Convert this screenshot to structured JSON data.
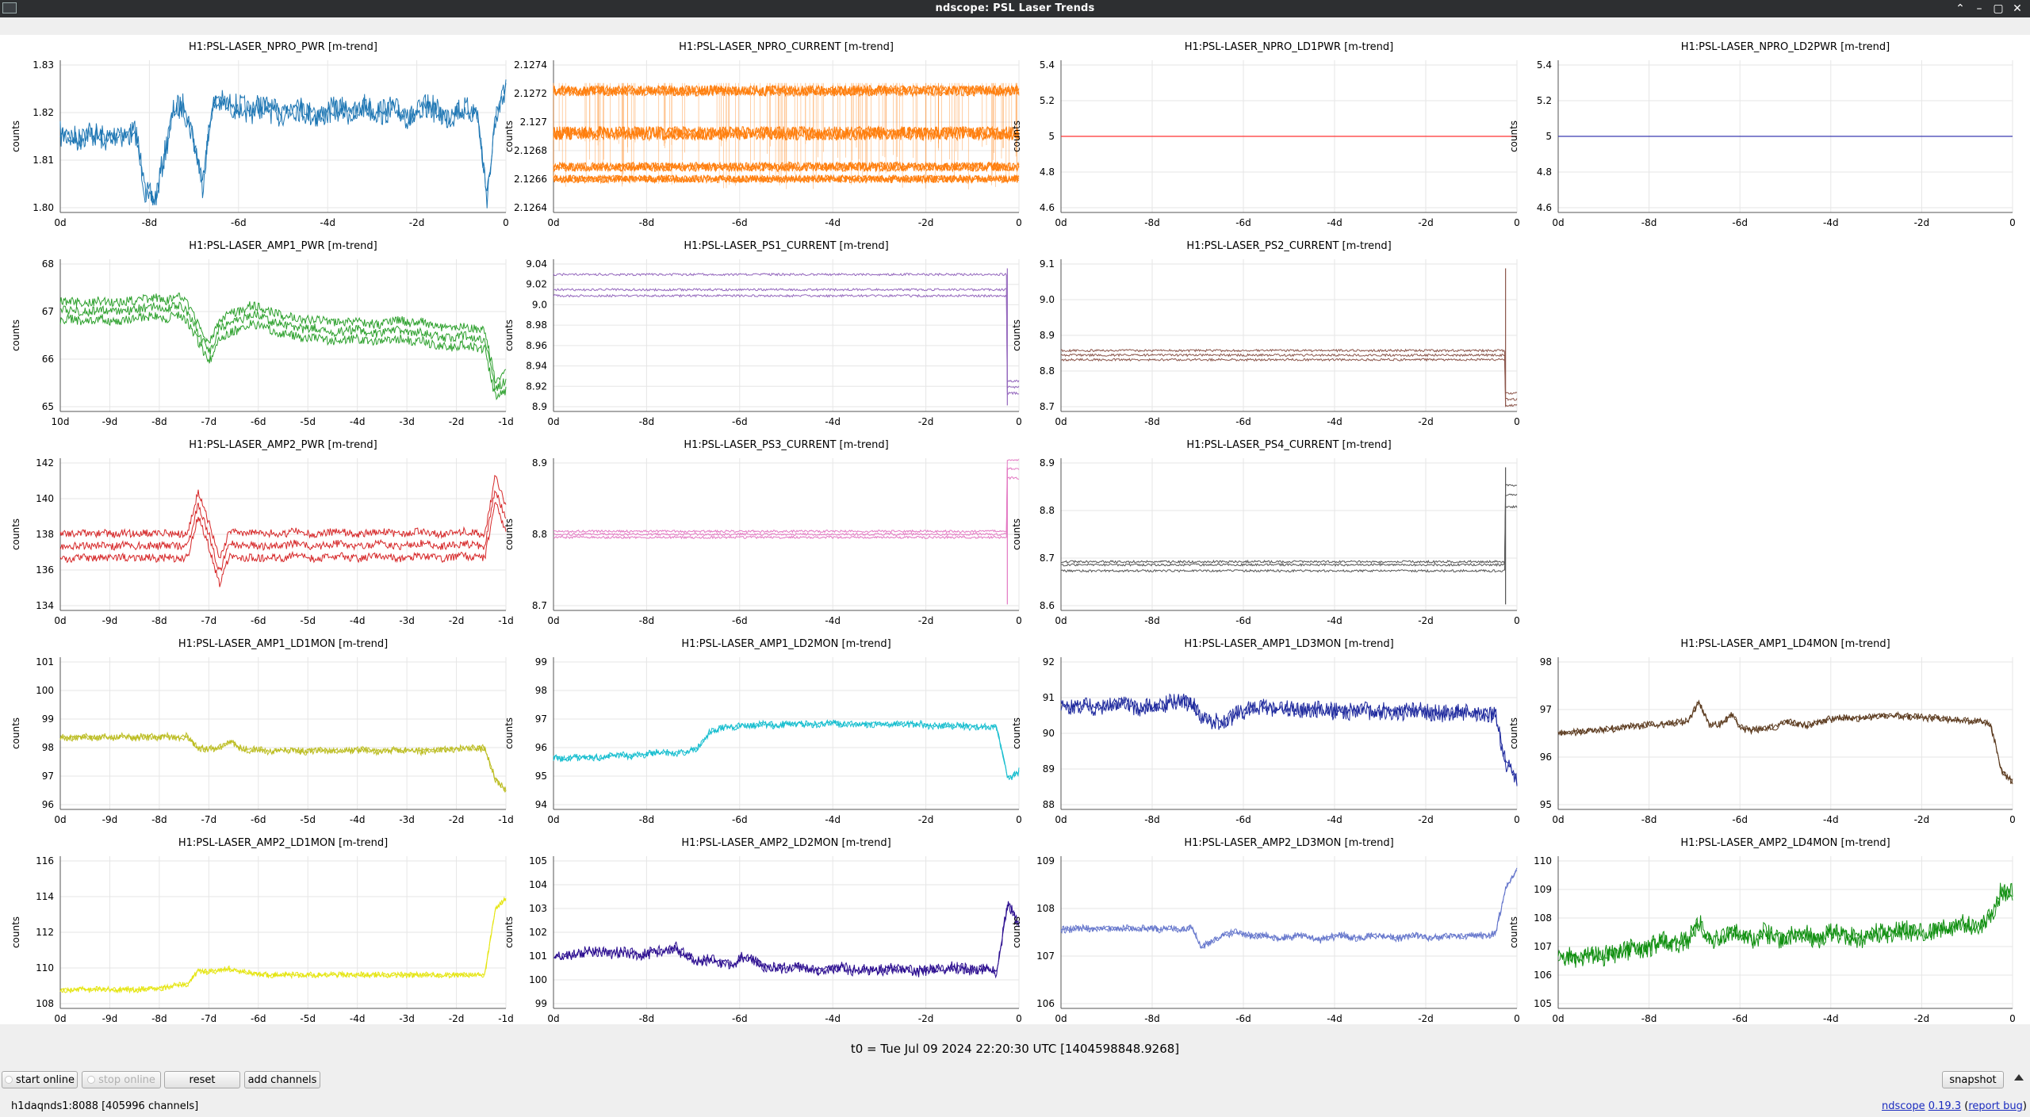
{
  "window": {
    "title": "ndscope: PSL Laser Trends",
    "controls": [
      "⌃",
      "–",
      "▢",
      "✕"
    ]
  },
  "y_unit": "counts",
  "plots": [
    {
      "title": "H1:PSL-LASER_NPRO_PWR [m-trend]",
      "color": "#1f77b4",
      "yticks": [
        "1.83",
        "1.82",
        "1.81",
        "1.80"
      ],
      "xticks": [
        "0d",
        "-8d",
        "-6d",
        "-4d",
        "-2d",
        "0"
      ],
      "style": "noisy",
      "series": {
        "base": [
          0.49,
          0.5,
          0.52,
          0.47,
          0.5,
          0.52,
          0.48,
          0.5,
          0.47,
          0.88,
          0.92,
          0.62,
          0.32,
          0.3,
          0.5,
          0.82,
          0.3,
          0.28,
          0.3,
          0.31,
          0.34,
          0.3,
          0.32,
          0.36,
          0.33,
          0.31,
          0.34,
          0.37,
          0.35,
          0.32,
          0.33,
          0.36,
          0.3,
          0.33,
          0.34,
          0.32,
          0.35,
          0.38,
          0.33,
          0.3,
          0.35,
          0.38,
          0.32,
          0.33,
          0.35,
          0.9,
          0.35,
          0.2
        ],
        "amp": 0.09
      }
    },
    {
      "title": "H1:PSL-LASER_NPRO_CURRENT [m-trend]",
      "color": "#ff7f0e",
      "yticks": [
        "2.1274",
        "2.1272",
        "2.127",
        "2.1268",
        "2.1266",
        "2.1264"
      ],
      "xticks": [
        "0d",
        "-8d",
        "-6d",
        "-4d",
        "-2d",
        "0"
      ],
      "style": "bands",
      "bands": [
        0.2,
        0.48,
        0.7,
        0.78
      ],
      "bandw": [
        0.07,
        0.09,
        0.06,
        0.05
      ]
    },
    {
      "title": "H1:PSL-LASER_NPRO_LD1PWR [m-trend]",
      "color": "#ff3333",
      "yticks": [
        "5.4",
        "5.2",
        "5",
        "4.8",
        "4.6"
      ],
      "xticks": [
        "0d",
        "-8d",
        "-6d",
        "-4d",
        "-2d",
        "0"
      ],
      "style": "flat",
      "level": 0.5
    },
    {
      "title": "H1:PSL-LASER_NPRO_LD2PWR [m-trend]",
      "color": "#3a3ab0",
      "yticks": [
        "5.4",
        "5.2",
        "5",
        "4.8",
        "4.6"
      ],
      "xticks": [
        "0d",
        "-8d",
        "-6d",
        "-4d",
        "-2d",
        "0"
      ],
      "style": "flat",
      "level": 0.5
    },
    {
      "title": "H1:PSL-LASER_AMP1_PWR [m-trend]",
      "color": "#2ca02c",
      "yticks": [
        "68",
        "67",
        "66",
        "65"
      ],
      "xticks": [
        "10d",
        "-9d",
        "-8d",
        "-7d",
        "-6d",
        "-5d",
        "-4d",
        "-3d",
        "-2d",
        "-1d"
      ],
      "style": "triple",
      "series": {
        "base": [
          0.34,
          0.33,
          0.35,
          0.34,
          0.33,
          0.35,
          0.34,
          0.33,
          0.32,
          0.31,
          0.33,
          0.3,
          0.35,
          0.48,
          0.62,
          0.46,
          0.42,
          0.4,
          0.36,
          0.38,
          0.41,
          0.43,
          0.44,
          0.46,
          0.45,
          0.47,
          0.48,
          0.47,
          0.46,
          0.48,
          0.49,
          0.47,
          0.46,
          0.48,
          0.47,
          0.5,
          0.51,
          0.52,
          0.5,
          0.52,
          0.53,
          0.85,
          0.8
        ],
        "amp": 0.03,
        "spread": 0.06
      }
    },
    {
      "title": "H1:PSL-LASER_PS1_CURRENT [m-trend]",
      "color": "#9467bd",
      "yticks": [
        "9.04",
        "9.02",
        "9.0",
        "8.98",
        "8.96",
        "8.94",
        "8.92",
        "8.9"
      ],
      "xticks": [
        "0d",
        "-8d",
        "-6d",
        "-4d",
        "-2d",
        "0"
      ],
      "style": "stepdown",
      "levels": [
        0.1,
        0.2,
        0.24
      ],
      "drop": 0.8
    },
    {
      "title": "H1:PSL-LASER_PS2_CURRENT [m-trend]",
      "color": "#8c564b",
      "yticks": [
        "9.1",
        "9.0",
        "8.9",
        "8.8",
        "8.7"
      ],
      "xticks": [
        "0d",
        "-8d",
        "-6d",
        "-4d",
        "-2d",
        "0"
      ],
      "style": "stepdown",
      "levels": [
        0.6,
        0.63,
        0.66
      ],
      "drop": 0.88
    },
    null,
    {
      "title": "H1:PSL-LASER_AMP2_PWR [m-trend]",
      "color": "#d62728",
      "yticks": [
        "142",
        "140",
        "138",
        "136",
        "134"
      ],
      "xticks": [
        "0d",
        "-9d",
        "-8d",
        "-7d",
        "-6d",
        "-5d",
        "-4d",
        "-3d",
        "-2d",
        "-1d"
      ],
      "style": "triple",
      "series": {
        "base": [
          0.58,
          0.58,
          0.57,
          0.58,
          0.57,
          0.58,
          0.57,
          0.58,
          0.57,
          0.58,
          0.57,
          0.58,
          0.57,
          0.3,
          0.5,
          0.75,
          0.55,
          0.58,
          0.57,
          0.58,
          0.57,
          0.58,
          0.56,
          0.57,
          0.58,
          0.57,
          0.56,
          0.57,
          0.58,
          0.57,
          0.56,
          0.57,
          0.58,
          0.57,
          0.56,
          0.57,
          0.58,
          0.57,
          0.56,
          0.57,
          0.58,
          0.2,
          0.4
        ],
        "amp": 0.025,
        "spread": 0.08
      }
    },
    {
      "title": "H1:PSL-LASER_PS3_CURRENT [m-trend]",
      "color": "#e377c2",
      "yticks": [
        "8.9",
        "8.8",
        "8.7"
      ],
      "xticks": [
        "0d",
        "-8d",
        "-6d",
        "-4d",
        "-2d",
        "0"
      ],
      "style": "stepup",
      "levels": [
        0.48,
        0.5,
        0.52
      ],
      "jump": 0.12
    },
    {
      "title": "H1:PSL-LASER_PS4_CURRENT [m-trend]",
      "color": "#555555",
      "yticks": [
        "8.9",
        "8.8",
        "8.7",
        "8.6"
      ],
      "xticks": [
        "0d",
        "-8d",
        "-6d",
        "-4d",
        "-2d",
        "0"
      ],
      "style": "stepup",
      "levels": [
        0.68,
        0.7,
        0.74
      ],
      "jump": 0.15
    },
    null,
    {
      "title": "H1:PSL-LASER_AMP1_LD1MON [m-trend]",
      "color": "#bcbd22",
      "yticks": [
        "101",
        "100",
        "99",
        "98",
        "97",
        "96"
      ],
      "xticks": [
        "0d",
        "-9d",
        "-8d",
        "-7d",
        "-6d",
        "-5d",
        "-4d",
        "-3d",
        "-2d",
        "-1d"
      ],
      "style": "noisy",
      "series": {
        "base": [
          0.53,
          0.53,
          0.52,
          0.53,
          0.52,
          0.53,
          0.52,
          0.53,
          0.52,
          0.53,
          0.52,
          0.53,
          0.52,
          0.6,
          0.6,
          0.6,
          0.55,
          0.6,
          0.61,
          0.61,
          0.62,
          0.61,
          0.61,
          0.62,
          0.61,
          0.61,
          0.62,
          0.61,
          0.61,
          0.61,
          0.62,
          0.61,
          0.61,
          0.61,
          0.62,
          0.61,
          0.61,
          0.61,
          0.6,
          0.6,
          0.6,
          0.8,
          0.88
        ],
        "amp": 0.025
      }
    },
    {
      "title": "H1:PSL-LASER_AMP1_LD2MON [m-trend]",
      "color": "#17becf",
      "yticks": [
        "99",
        "98",
        "97",
        "96",
        "95",
        "94"
      ],
      "xticks": [
        "0d",
        "-8d",
        "-6d",
        "-4d",
        "-2d",
        "0"
      ],
      "style": "noisy",
      "series": {
        "base": [
          0.66,
          0.67,
          0.66,
          0.65,
          0.66,
          0.65,
          0.64,
          0.65,
          0.64,
          0.63,
          0.62,
          0.63,
          0.62,
          0.6,
          0.5,
          0.47,
          0.46,
          0.45,
          0.45,
          0.44,
          0.45,
          0.44,
          0.44,
          0.44,
          0.44,
          0.43,
          0.44,
          0.44,
          0.44,
          0.44,
          0.44,
          0.44,
          0.44,
          0.44,
          0.45,
          0.45,
          0.45,
          0.45,
          0.46,
          0.46,
          0.46,
          0.8,
          0.75
        ],
        "amp": 0.025
      }
    },
    {
      "title": "H1:PSL-LASER_AMP1_LD3MON [m-trend]",
      "color": "#1f2a9e",
      "yticks": [
        "92",
        "91",
        "90",
        "89",
        "88"
      ],
      "xticks": [
        "0d",
        "-8d",
        "-6d",
        "-4d",
        "-2d",
        "0"
      ],
      "style": "noisy",
      "series": {
        "base": [
          0.3,
          0.32,
          0.31,
          0.33,
          0.32,
          0.3,
          0.31,
          0.34,
          0.32,
          0.33,
          0.3,
          0.29,
          0.3,
          0.4,
          0.42,
          0.44,
          0.38,
          0.35,
          0.32,
          0.33,
          0.34,
          0.33,
          0.35,
          0.34,
          0.35,
          0.36,
          0.35,
          0.36,
          0.35,
          0.36,
          0.35,
          0.36,
          0.36,
          0.35,
          0.36,
          0.37,
          0.36,
          0.37,
          0.36,
          0.37,
          0.38,
          0.7,
          0.82
        ],
        "amp": 0.06
      }
    },
    {
      "title": "H1:PSL-LASER_AMP1_LD4MON [m-trend]",
      "color": "#5b3a1e",
      "yticks": [
        "98",
        "97",
        "96",
        "95"
      ],
      "xticks": [
        "0d",
        "-8d",
        "-6d",
        "-4d",
        "-2d",
        "0"
      ],
      "style": "noisy",
      "series": {
        "base": [
          0.5,
          0.5,
          0.49,
          0.48,
          0.48,
          0.47,
          0.46,
          0.45,
          0.45,
          0.44,
          0.44,
          0.43,
          0.42,
          0.3,
          0.45,
          0.44,
          0.38,
          0.47,
          0.48,
          0.47,
          0.46,
          0.42,
          0.44,
          0.45,
          0.43,
          0.41,
          0.4,
          0.4,
          0.4,
          0.39,
          0.38,
          0.38,
          0.39,
          0.39,
          0.4,
          0.4,
          0.41,
          0.41,
          0.42,
          0.42,
          0.45,
          0.75,
          0.82
        ],
        "amp": 0.025
      }
    },
    {
      "title": "H1:PSL-LASER_AMP2_LD1MON [m-trend]",
      "color": "#e5e510",
      "yticks": [
        "116",
        "114",
        "112",
        "110",
        "108"
      ],
      "xticks": [
        "0d",
        "-9d",
        "-8d",
        "-7d",
        "-6d",
        "-5d",
        "-4d",
        "-3d",
        "-2d",
        "-1d"
      ],
      "style": "noisy",
      "series": {
        "base": [
          0.88,
          0.88,
          0.87,
          0.88,
          0.87,
          0.88,
          0.87,
          0.88,
          0.87,
          0.87,
          0.86,
          0.85,
          0.84,
          0.75,
          0.76,
          0.75,
          0.74,
          0.76,
          0.77,
          0.78,
          0.78,
          0.78,
          0.78,
          0.78,
          0.78,
          0.78,
          0.78,
          0.78,
          0.78,
          0.78,
          0.78,
          0.78,
          0.78,
          0.78,
          0.78,
          0.78,
          0.78,
          0.78,
          0.78,
          0.78,
          0.78,
          0.35,
          0.28
        ],
        "amp": 0.02
      }
    },
    {
      "title": "H1:PSL-LASER_AMP2_LD2MON [m-trend]",
      "color": "#2a0c8f",
      "yticks": [
        "105",
        "104",
        "103",
        "102",
        "101",
        "100",
        "99"
      ],
      "xticks": [
        "0d",
        "-8d",
        "-6d",
        "-4d",
        "-2d",
        "0"
      ],
      "style": "noisy",
      "series": {
        "base": [
          0.65,
          0.66,
          0.64,
          0.63,
          0.62,
          0.64,
          0.63,
          0.64,
          0.65,
          0.63,
          0.62,
          0.6,
          0.66,
          0.7,
          0.68,
          0.7,
          0.72,
          0.66,
          0.68,
          0.72,
          0.74,
          0.73,
          0.72,
          0.74,
          0.76,
          0.74,
          0.73,
          0.75,
          0.74,
          0.76,
          0.74,
          0.73,
          0.75,
          0.76,
          0.74,
          0.75,
          0.73,
          0.74,
          0.75,
          0.74,
          0.76,
          0.3,
          0.45
        ],
        "amp": 0.04
      }
    },
    {
      "title": "H1:PSL-LASER_AMP2_LD3MON [m-trend]",
      "color": "#6677cc",
      "yticks": [
        "109",
        "108",
        "107",
        "106"
      ],
      "xticks": [
        "0d",
        "-8d",
        "-6d",
        "-4d",
        "-2d",
        "0"
      ],
      "style": "noisy",
      "series": {
        "base": [
          0.48,
          0.48,
          0.47,
          0.48,
          0.47,
          0.48,
          0.47,
          0.48,
          0.47,
          0.48,
          0.47,
          0.48,
          0.47,
          0.6,
          0.55,
          0.52,
          0.5,
          0.52,
          0.53,
          0.52,
          0.54,
          0.53,
          0.52,
          0.54,
          0.55,
          0.53,
          0.52,
          0.54,
          0.53,
          0.52,
          0.53,
          0.54,
          0.53,
          0.52,
          0.54,
          0.53,
          0.52,
          0.53,
          0.52,
          0.52,
          0.51,
          0.2,
          0.1
        ],
        "amp": 0.025
      }
    },
    {
      "title": "H1:PSL-LASER_AMP2_LD4MON [m-trend]",
      "color": "#0f8f0f",
      "yticks": [
        "110",
        "109",
        "108",
        "107",
        "106",
        "105"
      ],
      "xticks": [
        "0d",
        "-8d",
        "-6d",
        "-4d",
        "-2d",
        "0"
      ],
      "style": "noisy",
      "series": {
        "base": [
          0.68,
          0.66,
          0.67,
          0.64,
          0.66,
          0.64,
          0.63,
          0.6,
          0.61,
          0.58,
          0.56,
          0.57,
          0.55,
          0.42,
          0.54,
          0.56,
          0.5,
          0.52,
          0.55,
          0.5,
          0.53,
          0.55,
          0.5,
          0.52,
          0.55,
          0.5,
          0.51,
          0.53,
          0.55,
          0.5,
          0.51,
          0.5,
          0.48,
          0.5,
          0.51,
          0.47,
          0.48,
          0.45,
          0.45,
          0.46,
          0.4,
          0.22,
          0.25
        ],
        "amp": 0.07
      }
    }
  ],
  "footer": {
    "t0": "t0 = Tue Jul 09 2024 22:20:30 UTC [1404598848.9268]"
  },
  "buttons": {
    "start_online": "start online",
    "stop_online": "stop online",
    "reset": "reset",
    "add_channels": "add channels",
    "snapshot": "snapshot"
  },
  "status": {
    "server": "h1daqnds1:8088  [405996 channels]",
    "version_app": "ndscope",
    "version_num": "0.19.3",
    "report_bug": "report bug"
  }
}
